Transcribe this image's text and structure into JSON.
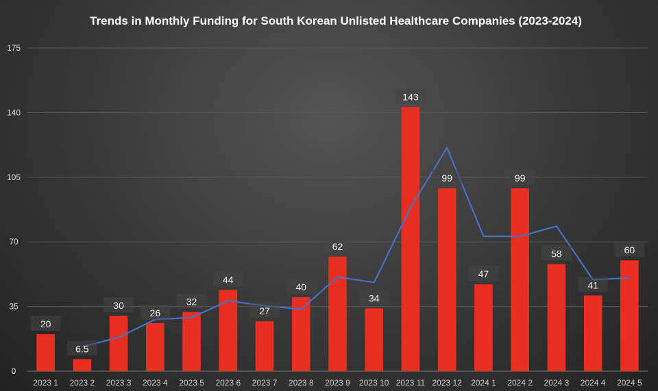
{
  "chart_data": {
    "type": "bar",
    "title": "Trends in Monthly Funding for South Korean Unlisted Healthcare Companies (2023-2024)",
    "xlabel": "",
    "ylabel": "",
    "ylim": [
      0,
      175
    ],
    "yticks": [
      0,
      35,
      70,
      105,
      140,
      175
    ],
    "grid": true,
    "categories": [
      "2023 1",
      "2023 2",
      "2023 3",
      "2023 4",
      "2023 5",
      "2023 6",
      "2023 7",
      "2023 8",
      "2023 9",
      "2023 10",
      "2023 11",
      "2023 12",
      "2024 1",
      "2024 2",
      "2024 3",
      "2024 4",
      "2024 5"
    ],
    "series": [
      {
        "type": "bar",
        "color": "#e83020",
        "values": [
          20,
          6.5,
          30,
          26,
          32,
          44,
          27,
          40,
          62,
          34,
          143,
          99,
          47,
          99,
          58,
          41,
          60
        ],
        "labels": [
          "20",
          "6.5",
          "30",
          "26",
          "32",
          "44",
          "27",
          "40",
          "62",
          "34",
          "143",
          "99",
          "47",
          "99",
          "58",
          "41",
          "60"
        ]
      },
      {
        "type": "line",
        "trendline": "2-period moving average",
        "color": "#4a6fc8",
        "values": [
          null,
          13.25,
          18.25,
          28,
          29,
          38,
          35.5,
          33.5,
          51,
          48,
          88.5,
          121,
          73,
          73,
          78.5,
          49.5,
          50.5
        ]
      }
    ]
  }
}
